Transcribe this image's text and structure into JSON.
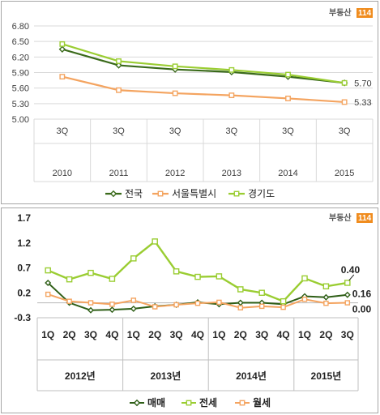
{
  "logo": {
    "text": "부동산",
    "number": "114"
  },
  "chart_data": [
    {
      "type": "line",
      "ylim": [
        5.0,
        6.8
      ],
      "yticks": [
        "6.80",
        "6.50",
        "6.20",
        "5.90",
        "5.60",
        "5.30",
        "5.00"
      ],
      "categories": [
        [
          "3Q",
          "2010"
        ],
        [
          "3Q",
          "2011"
        ],
        [
          "3Q",
          "2012"
        ],
        [
          "3Q",
          "2013"
        ],
        [
          "3Q",
          "2014"
        ],
        [
          "3Q",
          "2015"
        ]
      ],
      "series": [
        {
          "name": "전국",
          "color": "#3a6a1a",
          "marker": "diamond",
          "values": [
            6.35,
            6.04,
            5.96,
            5.91,
            5.82,
            5.7
          ]
        },
        {
          "name": "서울특별시",
          "color": "#f4a460",
          "marker": "square",
          "values": [
            5.82,
            5.56,
            5.5,
            5.46,
            5.4,
            5.33
          ]
        },
        {
          "name": "경기도",
          "color": "#9acd32",
          "marker": "square",
          "values": [
            6.45,
            6.12,
            6.02,
            5.95,
            5.86,
            5.7
          ]
        }
      ],
      "end_labels": [
        "5.70",
        "5.33"
      ],
      "grid": true,
      "legend": "bottom"
    },
    {
      "type": "line",
      "ylim": [
        -0.3,
        1.7
      ],
      "yticks": [
        "1.7",
        "1.2",
        "0.7",
        "0.2",
        "-0.3"
      ],
      "quarters": [
        "1Q",
        "2Q",
        "3Q",
        "4Q",
        "1Q",
        "2Q",
        "3Q",
        "4Q",
        "1Q",
        "2Q",
        "3Q",
        "4Q",
        "1Q",
        "2Q",
        "3Q"
      ],
      "years": [
        "2012년",
        "2013년",
        "2014년",
        "2015년"
      ],
      "series": [
        {
          "name": "매매",
          "color": "#2e5e16",
          "marker": "diamond",
          "values": [
            0.4,
            0.0,
            -0.15,
            -0.14,
            -0.12,
            -0.07,
            -0.04,
            0.01,
            -0.03,
            0.0,
            0.0,
            -0.03,
            0.13,
            0.11,
            0.16
          ]
        },
        {
          "name": "전세",
          "color": "#9acd32",
          "marker": "square",
          "values": [
            0.65,
            0.47,
            0.6,
            0.48,
            0.89,
            1.23,
            0.63,
            0.52,
            0.53,
            0.27,
            0.2,
            0.03,
            0.49,
            0.33,
            0.4
          ]
        },
        {
          "name": "월세",
          "color": "#f4a460",
          "marker": "square",
          "values": [
            0.17,
            0.03,
            0.0,
            -0.03,
            0.05,
            -0.08,
            -0.04,
            -0.01,
            0.01,
            -0.1,
            -0.07,
            -0.09,
            0.07,
            -0.01,
            0.0
          ]
        }
      ],
      "end_labels": [
        "0.40",
        "0.16",
        "0.00"
      ],
      "grid": false,
      "legend": "bottom"
    }
  ]
}
